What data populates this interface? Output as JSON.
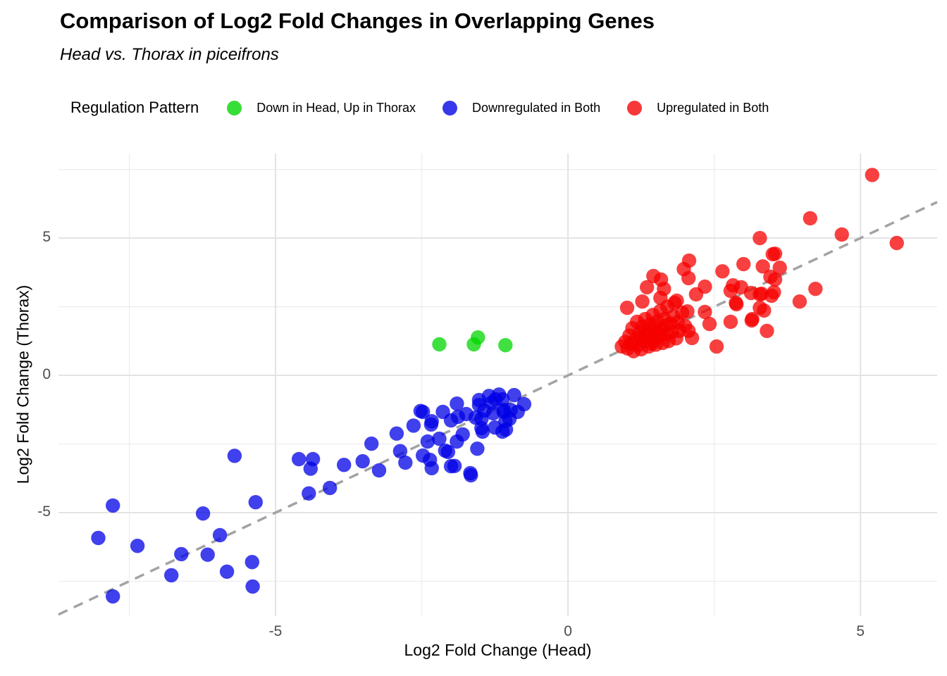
{
  "chart_data": {
    "type": "scatter",
    "title": "Comparison of Log2 Fold Changes in Overlapping Genes",
    "subtitle": "Head vs. Thorax in piceifrons",
    "xlabel": "Log2 Fold Change (Head)",
    "ylabel": "Log2 Fold Change (Thorax)",
    "legend_title": "Regulation Pattern",
    "legend_position": "top",
    "xlim": [
      -8.71,
      6.31
    ],
    "ylim": [
      -8.77,
      8.08
    ],
    "xticks": [
      -5,
      0,
      5
    ],
    "yticks": [
      -5,
      0,
      5
    ],
    "minor_ticks_x": [
      -7.5,
      -2.5,
      2.5
    ],
    "minor_ticks_y": [
      -7.5,
      -2.5,
      2.5,
      7.5
    ],
    "grid": true,
    "background": "#ffffff",
    "grid_major_color": "#E3E3E3",
    "grid_minor_color": "#EDEDED",
    "identity_line": {
      "equation": "y = x",
      "style": "dashed",
      "color": "#A3A3A3"
    },
    "point_radius": 10.2,
    "point_opacity": 0.75,
    "tick_label_color": "#4D4D4D",
    "series": [
      {
        "name": "Down in Head, Up in Thorax",
        "color": "#00D500",
        "points": [
          [
            -2.2,
            1.13
          ],
          [
            -1.61,
            1.13
          ],
          [
            -1.54,
            1.38
          ],
          [
            -1.07,
            1.1
          ]
        ]
      },
      {
        "name": "Downregulated in Both",
        "color": "#0000E6",
        "points": [
          [
            -8.03,
            -5.92
          ],
          [
            -7.78,
            -4.74
          ],
          [
            -7.78,
            -8.05
          ],
          [
            -7.36,
            -6.21
          ],
          [
            -6.78,
            -7.28
          ],
          [
            -6.61,
            -6.51
          ],
          [
            -6.24,
            -5.03
          ],
          [
            -6.16,
            -6.53
          ],
          [
            -5.95,
            -5.82
          ],
          [
            -5.83,
            -7.15
          ],
          [
            -5.7,
            -2.93
          ],
          [
            -5.4,
            -6.8
          ],
          [
            -5.39,
            -7.69
          ],
          [
            -5.34,
            -4.62
          ],
          [
            -4.6,
            -3.05
          ],
          [
            -4.43,
            -4.3
          ],
          [
            -4.4,
            -3.4
          ],
          [
            -4.36,
            -3.05
          ],
          [
            -4.07,
            -4.1
          ],
          [
            -3.83,
            -3.26
          ],
          [
            -3.51,
            -3.13
          ],
          [
            -3.36,
            -2.49
          ],
          [
            -3.23,
            -3.46
          ],
          [
            -2.93,
            -2.12
          ],
          [
            -2.87,
            -2.76
          ],
          [
            -2.78,
            -3.18
          ],
          [
            -2.64,
            -1.83
          ],
          [
            -2.52,
            -1.3
          ],
          [
            -2.48,
            -1.33
          ],
          [
            -2.48,
            -2.92
          ],
          [
            -2.4,
            -2.41
          ],
          [
            -2.36,
            -3.08
          ],
          [
            -2.34,
            -1.79
          ],
          [
            -2.33,
            -1.67
          ],
          [
            -2.33,
            -3.38
          ],
          [
            -2.2,
            -2.31
          ],
          [
            -2.14,
            -1.33
          ],
          [
            -2.1,
            -2.74
          ],
          [
            -2.05,
            -2.79
          ],
          [
            -2.0,
            -1.64
          ],
          [
            -2.0,
            -3.31
          ],
          [
            -1.94,
            -3.3
          ],
          [
            -1.9,
            -1.03
          ],
          [
            -1.9,
            -2.41
          ],
          [
            -1.88,
            -1.51
          ],
          [
            -1.8,
            -2.15
          ],
          [
            -1.74,
            -1.41
          ],
          [
            -1.67,
            -3.56
          ],
          [
            -1.66,
            -3.64
          ],
          [
            -1.58,
            -1.54
          ],
          [
            -1.55,
            -2.67
          ],
          [
            -1.52,
            -0.9
          ],
          [
            -1.52,
            -1.08
          ],
          [
            -1.48,
            -1.59
          ],
          [
            -1.48,
            -1.92
          ],
          [
            -1.46,
            -2.05
          ],
          [
            -1.43,
            -1.28
          ],
          [
            -1.35,
            -0.75
          ],
          [
            -1.31,
            -1.0
          ],
          [
            -1.28,
            -1.38
          ],
          [
            -1.25,
            -1.9
          ],
          [
            -1.24,
            -0.87
          ],
          [
            -1.18,
            -0.7
          ],
          [
            -1.12,
            -0.87
          ],
          [
            -1.12,
            -2.05
          ],
          [
            -1.1,
            -1.26
          ],
          [
            -1.1,
            -1.33
          ],
          [
            -1.07,
            -1.67
          ],
          [
            -1.06,
            -1.97
          ],
          [
            -1.0,
            -1.59
          ],
          [
            -0.98,
            -1.26
          ],
          [
            -0.92,
            -0.72
          ],
          [
            -0.86,
            -1.33
          ],
          [
            -0.75,
            -1.05
          ]
        ]
      },
      {
        "name": "Upregulated in Both",
        "color": "#F50000",
        "points": [
          [
            5.2,
            7.3
          ],
          [
            4.14,
            5.72
          ],
          [
            4.68,
            5.13
          ],
          [
            5.62,
            4.82
          ],
          [
            3.28,
            5.0
          ],
          [
            3.5,
            4.41
          ],
          [
            3.54,
            4.43
          ],
          [
            2.07,
            4.18
          ],
          [
            1.98,
            3.87
          ],
          [
            2.06,
            3.54
          ],
          [
            1.46,
            3.62
          ],
          [
            1.59,
            3.49
          ],
          [
            1.35,
            3.21
          ],
          [
            1.64,
            3.15
          ],
          [
            1.27,
            2.69
          ],
          [
            1.01,
            2.46
          ],
          [
            1.58,
            2.82
          ],
          [
            1.82,
            2.64
          ],
          [
            1.86,
            2.72
          ],
          [
            2.19,
            2.95
          ],
          [
            2.34,
            3.23
          ],
          [
            2.64,
            3.79
          ],
          [
            3.0,
            4.05
          ],
          [
            3.33,
            3.97
          ],
          [
            3.46,
            3.59
          ],
          [
            2.82,
            3.28
          ],
          [
            2.78,
            3.08
          ],
          [
            3.28,
            2.95
          ],
          [
            3.52,
            3.03
          ],
          [
            3.28,
            2.46
          ],
          [
            3.14,
            2.0
          ],
          [
            2.78,
            1.95
          ],
          [
            3.4,
            1.62
          ],
          [
            2.54,
            1.05
          ],
          [
            2.34,
            2.31
          ],
          [
            2.04,
            2.33
          ],
          [
            2.42,
            1.87
          ],
          [
            2.06,
            1.62
          ],
          [
            2.12,
            1.36
          ],
          [
            3.62,
            3.92
          ],
          [
            3.54,
            3.49
          ],
          [
            3.96,
            2.69
          ],
          [
            4.23,
            3.15
          ],
          [
            3.15,
            2.05
          ],
          [
            3.35,
            2.36
          ],
          [
            2.87,
            2.64
          ],
          [
            3.13,
            3.0
          ],
          [
            2.96,
            3.21
          ],
          [
            3.31,
            2.97
          ],
          [
            3.48,
            2.9
          ],
          [
            2.88,
            2.59
          ],
          [
            0.92,
            1.05
          ],
          [
            0.98,
            1.22
          ],
          [
            1.02,
            0.98
          ],
          [
            1.05,
            1.45
          ],
          [
            1.08,
            1.15
          ],
          [
            1.1,
            1.72
          ],
          [
            1.12,
            0.88
          ],
          [
            1.15,
            1.3
          ],
          [
            1.18,
            1.95
          ],
          [
            1.2,
            1.1
          ],
          [
            1.22,
            1.55
          ],
          [
            1.25,
            0.95
          ],
          [
            1.28,
            1.78
          ],
          [
            1.3,
            1.25
          ],
          [
            1.32,
            2.05
          ],
          [
            1.35,
            1.48
          ],
          [
            1.38,
            1.05
          ],
          [
            1.4,
            1.85
          ],
          [
            1.42,
            1.32
          ],
          [
            1.45,
            2.2
          ],
          [
            1.48,
            1.6
          ],
          [
            1.5,
            1.12
          ],
          [
            1.52,
            1.95
          ],
          [
            1.55,
            1.4
          ],
          [
            1.58,
            2.35
          ],
          [
            1.6,
            1.7
          ],
          [
            1.62,
            1.18
          ],
          [
            1.65,
            2.05
          ],
          [
            1.68,
            1.5
          ],
          [
            1.7,
            2.5
          ],
          [
            1.72,
            1.25
          ],
          [
            1.75,
            1.88
          ],
          [
            1.78,
            1.58
          ],
          [
            1.8,
            2.15
          ],
          [
            1.85,
            1.35
          ],
          [
            1.88,
            1.95
          ],
          [
            1.9,
            1.62
          ],
          [
            1.95,
            2.28
          ],
          [
            2.0,
            1.8
          ],
          [
            1.33,
            1.62
          ],
          [
            1.47,
            1.78
          ],
          [
            1.57,
            1.52
          ],
          [
            1.23,
            1.38
          ],
          [
            1.43,
            1.15
          ],
          [
            1.67,
            1.82
          ]
        ]
      }
    ]
  }
}
